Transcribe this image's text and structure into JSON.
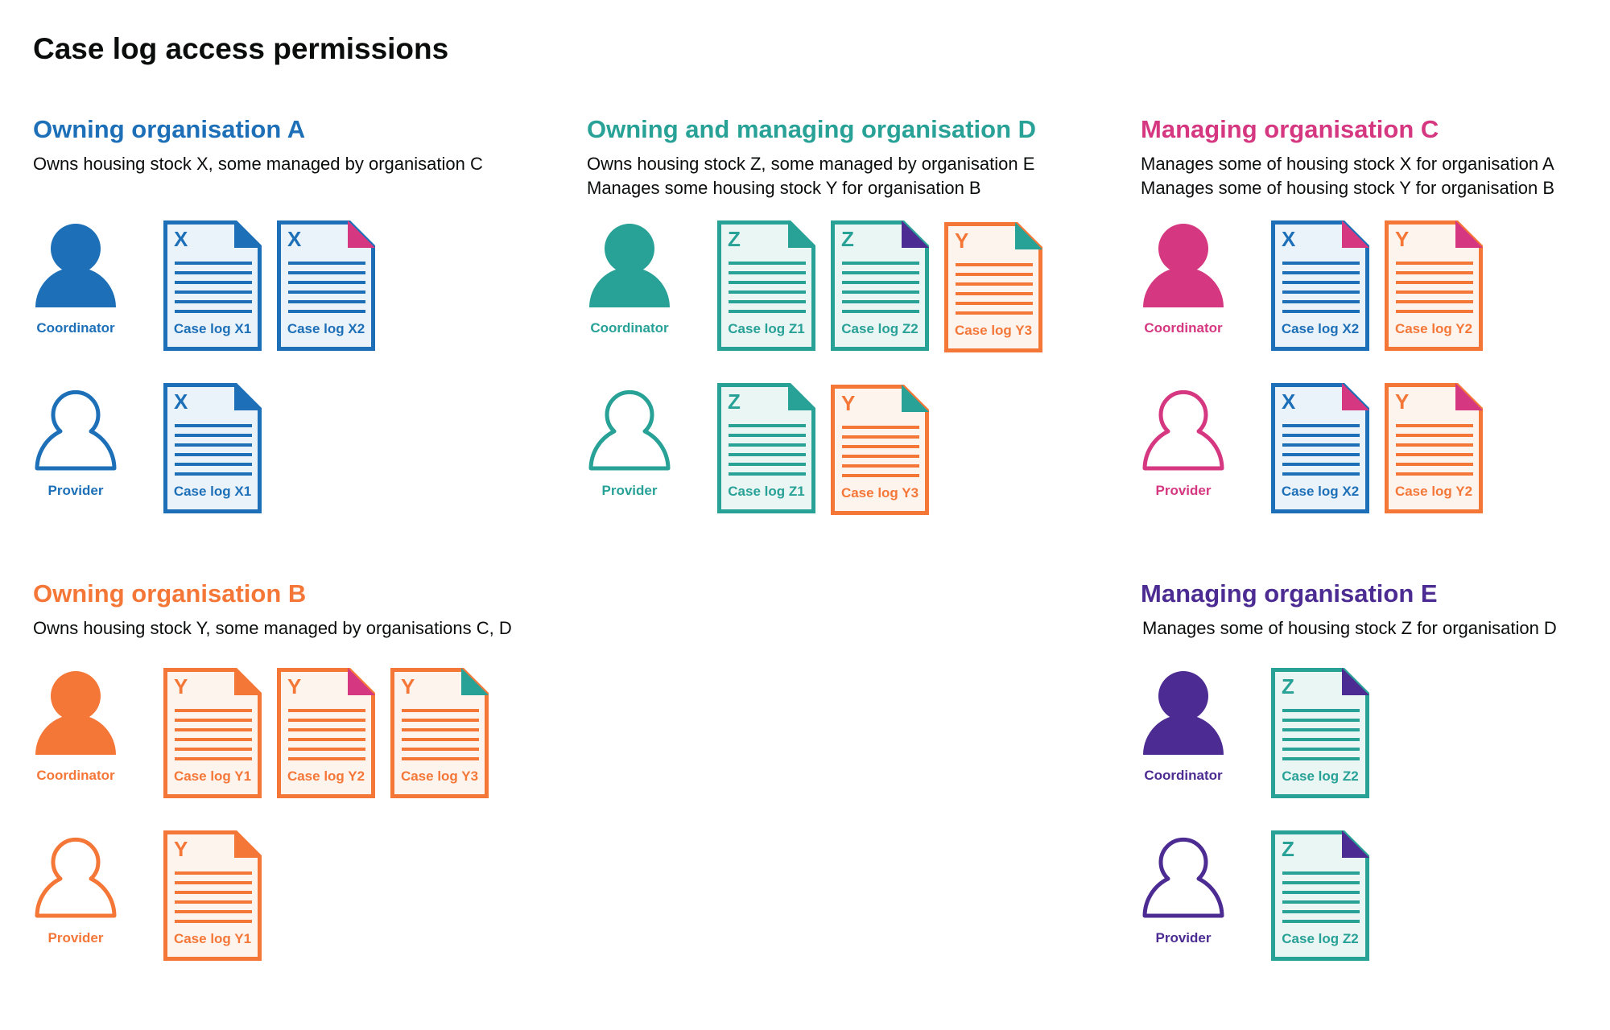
{
  "title": "Case log access permissions",
  "colors": {
    "X": "#1d70b8",
    "Y": "#f47738",
    "Z": "#28a197",
    "blue": "#1d70b8",
    "teal": "#28a197",
    "pink": "#d53880",
    "orange": "#f47738",
    "purple": "#4c2c92"
  },
  "doc_bg": {
    "X": "#ebf3fa",
    "Y": "#fef4ee",
    "Z": "#eaf6f4"
  },
  "sections": [
    {
      "id": "owning-organisation-a",
      "title": "Owning organisation A",
      "color": "blue",
      "pos": "a",
      "description": [
        "Owns housing stock X, some managed by organisation C"
      ],
      "rows": [
        {
          "role": "Coordinator",
          "filled": true,
          "docs": [
            {
              "letter": "X",
              "label": "Case log X1",
              "corner": "blue"
            },
            {
              "letter": "X",
              "label": "Case log X2",
              "corner": "pink"
            }
          ]
        },
        {
          "role": "Provider",
          "filled": false,
          "docs": [
            {
              "letter": "X",
              "label": "Case log X1",
              "corner": "blue"
            }
          ]
        }
      ]
    },
    {
      "id": "owning-and-managing-organisation-d",
      "title": "Owning and managing organisation D",
      "color": "teal",
      "pos": "d",
      "description": [
        "Owns housing stock Z, some managed by organisation E",
        "Manages some housing stock Y for organisation B"
      ],
      "rows": [
        {
          "role": "Coordinator",
          "filled": true,
          "docs": [
            {
              "letter": "Z",
              "label": "Case log Z1",
              "corner": "teal"
            },
            {
              "letter": "Z",
              "label": "Case log Z2",
              "corner": "purple"
            },
            {
              "letter": "Y",
              "label": "Case log Y3",
              "corner": "teal"
            }
          ]
        },
        {
          "role": "Provider",
          "filled": false,
          "docs": [
            {
              "letter": "Z",
              "label": "Case log Z1",
              "corner": "teal"
            },
            {
              "letter": "Y",
              "label": "Case log Y3",
              "corner": "teal"
            }
          ]
        }
      ]
    },
    {
      "id": "managing-organisation-c",
      "title": "Managing organisation C",
      "color": "pink",
      "pos": "c",
      "description": [
        "Manages some of housing stock X for organisation A",
        "Manages some of housing stock Y for organisation B"
      ],
      "rows": [
        {
          "role": "Coordinator",
          "filled": true,
          "docs": [
            {
              "letter": "X",
              "label": "Case log X2",
              "corner": "pink"
            },
            {
              "letter": "Y",
              "label": "Case log Y2",
              "corner": "pink"
            }
          ]
        },
        {
          "role": "Provider",
          "filled": false,
          "docs": [
            {
              "letter": "X",
              "label": "Case log X2",
              "corner": "pink"
            },
            {
              "letter": "Y",
              "label": "Case log Y2",
              "corner": "pink"
            }
          ]
        }
      ]
    },
    {
      "id": "owning-organisation-b",
      "title": "Owning organisation B",
      "color": "orange",
      "pos": "b",
      "description": [
        "Owns housing stock Y, some managed by organisations C, D"
      ],
      "rows": [
        {
          "role": "Coordinator",
          "filled": true,
          "docs": [
            {
              "letter": "Y",
              "label": "Case log Y1",
              "corner": "orange"
            },
            {
              "letter": "Y",
              "label": "Case log Y2",
              "corner": "pink"
            },
            {
              "letter": "Y",
              "label": "Case log Y3",
              "corner": "teal"
            }
          ]
        },
        {
          "role": "Provider",
          "filled": false,
          "docs": [
            {
              "letter": "Y",
              "label": "Case log Y1",
              "corner": "orange"
            }
          ]
        }
      ]
    },
    {
      "id": "managing-organisation-e",
      "title": "Managing organisation E",
      "color": "purple",
      "pos": "e",
      "description": [
        "Manages some of housing stock Z for organisation D"
      ],
      "rows": [
        {
          "role": "Coordinator",
          "filled": true,
          "docs": [
            {
              "letter": "Z",
              "label": "Case log Z2",
              "corner": "purple"
            }
          ]
        },
        {
          "role": "Provider",
          "filled": false,
          "docs": [
            {
              "letter": "Z",
              "label": "Case log Z2",
              "corner": "purple"
            }
          ]
        }
      ]
    }
  ]
}
